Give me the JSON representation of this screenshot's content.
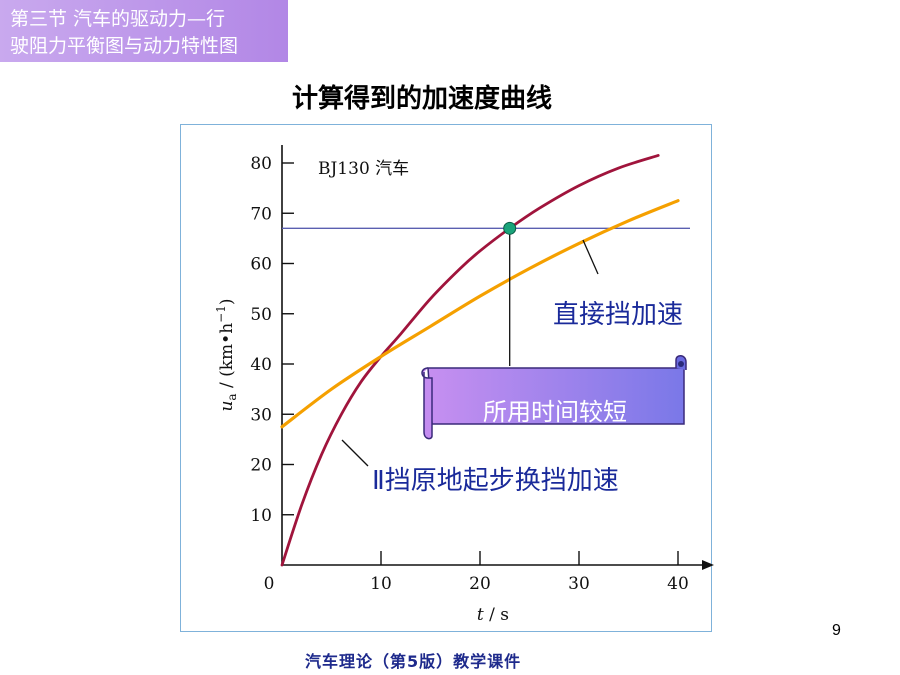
{
  "header": {
    "section_line1": "第三节  汽车的驱动力—行",
    "section_line2": "驶阻力平衡图与动力特性图"
  },
  "slide_title": "计算得到的加速度曲线",
  "page_number": "9",
  "footer": "汽车理论（第5版）教学课件",
  "colors": {
    "gear2_curve": "#a0143c",
    "direct_curve": "#f5a000",
    "hline": "#5a5fb0",
    "marker": "#1aa37a",
    "annotation_text": "#1a2a9a",
    "scroll_fill": "#7a78e8"
  },
  "annotations": {
    "vehicle": "BJ130 汽车",
    "direct_gear": "直接挡加速",
    "gear2": "Ⅱ挡原地起步换挡加速",
    "scroll": "所用时间较短"
  },
  "chart_data": {
    "type": "line",
    "xlabel_var": "t",
    "xlabel_unit": "/ s",
    "ylabel": "u_a / (km•h^-1)",
    "xlim": [
      0,
      40
    ],
    "ylim": [
      0,
      80
    ],
    "x_ticks": [
      "0",
      "10",
      "20",
      "30",
      "40"
    ],
    "y_ticks": [
      "10",
      "20",
      "30",
      "40",
      "50",
      "60",
      "70",
      "80"
    ],
    "grid": false,
    "reference_line": {
      "y": 67
    },
    "intersection_point": {
      "x": 23,
      "y": 67
    },
    "series": [
      {
        "name": "Ⅱ挡原地起步换挡加速",
        "x": [
          0,
          2,
          4,
          6,
          8,
          10,
          12,
          15,
          18,
          20,
          23,
          26,
          30,
          34,
          38
        ],
        "y": [
          0,
          12,
          22,
          30,
          36.5,
          41.5,
          46,
          53,
          59,
          62.5,
          67,
          71,
          75.5,
          79,
          81.5
        ]
      },
      {
        "name": "直接挡加速",
        "x": [
          0,
          5,
          10,
          15,
          20,
          25,
          30,
          35,
          40
        ],
        "y": [
          27.5,
          35,
          41.5,
          47.5,
          53.5,
          59,
          64,
          68.5,
          72.5
        ]
      }
    ]
  }
}
